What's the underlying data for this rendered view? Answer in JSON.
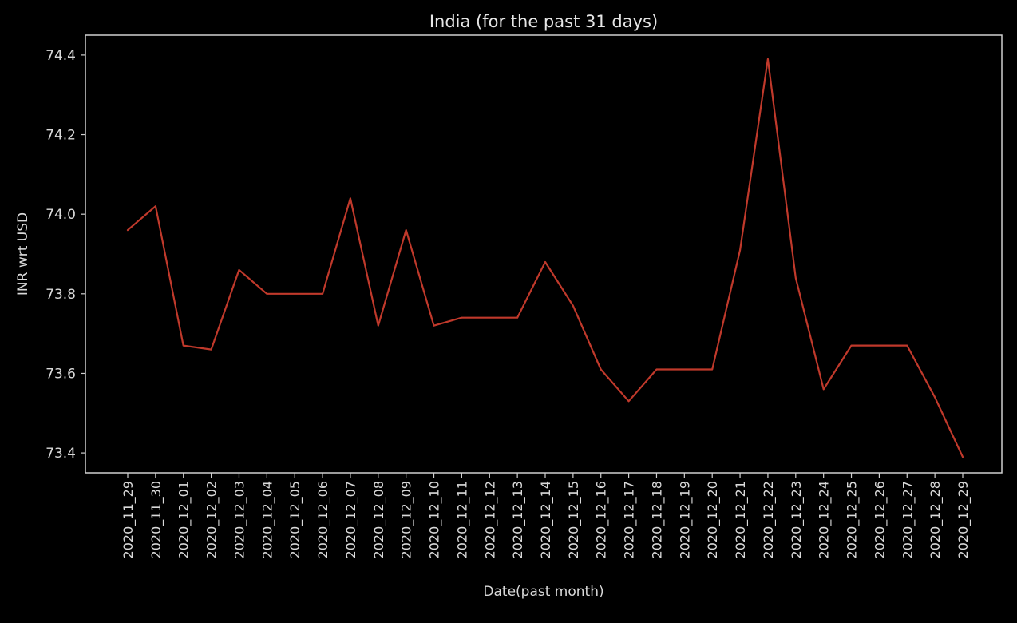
{
  "chart_data": {
    "type": "line",
    "title": "India (for the past 31 days)",
    "xlabel": "Date(past month)",
    "ylabel": "INR wrt USD",
    "ylim": [
      73.35,
      74.45
    ],
    "yticks": [
      73.4,
      73.6,
      73.8,
      74.0,
      74.2,
      74.4
    ],
    "grid": false,
    "x": [
      "2020_11_29",
      "2020_11_30",
      "2020_12_01",
      "2020_12_02",
      "2020_12_03",
      "2020_12_04",
      "2020_12_05",
      "2020_12_06",
      "2020_12_07",
      "2020_12_08",
      "2020_12_09",
      "2020_12_10",
      "2020_12_11",
      "2020_12_12",
      "2020_12_13",
      "2020_12_14",
      "2020_12_15",
      "2020_12_16",
      "2020_12_17",
      "2020_12_18",
      "2020_12_19",
      "2020_12_20",
      "2020_12_21",
      "2020_12_22",
      "2020_12_23",
      "2020_12_24",
      "2020_12_25",
      "2020_12_26",
      "2020_12_27",
      "2020_12_28",
      "2020_12_29"
    ],
    "series": [
      {
        "color": "#c0392b",
        "values": [
          73.96,
          74.02,
          73.67,
          73.66,
          73.86,
          73.8,
          73.8,
          73.8,
          74.04,
          73.72,
          73.96,
          73.72,
          73.74,
          73.74,
          73.74,
          73.88,
          73.77,
          73.61,
          73.53,
          73.61,
          73.61,
          73.61,
          73.91,
          74.39,
          73.84,
          73.56,
          73.67,
          73.67,
          73.67,
          73.54,
          73.39
        ]
      }
    ],
    "colors": {
      "background": "#000000",
      "frame": "#cfcfcf",
      "text": "#d9d9d9",
      "line": "#c0392b"
    }
  }
}
